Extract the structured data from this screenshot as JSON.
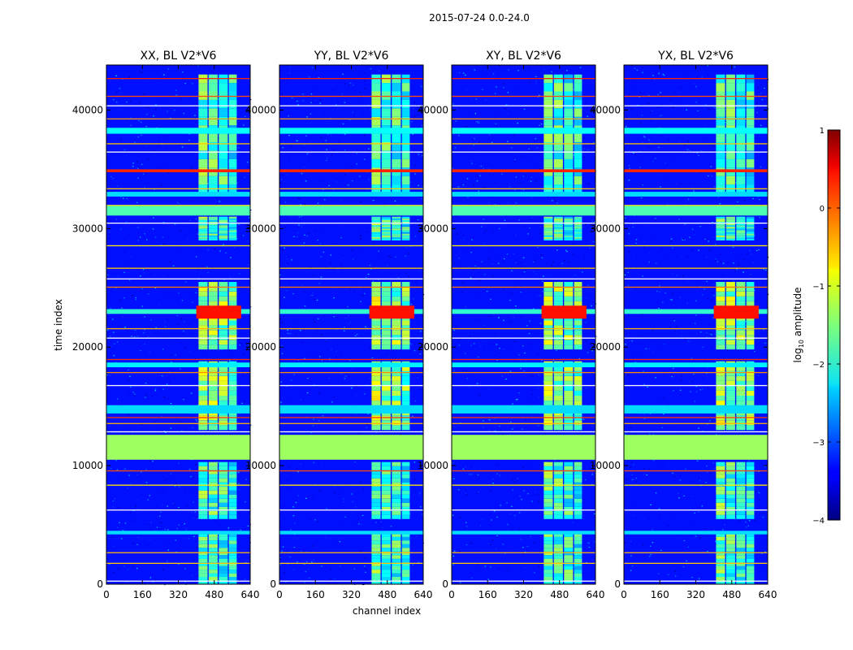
{
  "chart_data": {
    "type": "heatmap",
    "suptitle": "2015-07-24 0.0-24.0",
    "xlabel": "channel index",
    "ylabel": "time index",
    "xlim": [
      0,
      640
    ],
    "ylim": [
      0,
      43800
    ],
    "xticks": [
      0,
      160,
      320,
      480,
      640
    ],
    "yticks": [
      0,
      10000,
      20000,
      30000,
      40000
    ],
    "panels": [
      {
        "title": "XX, BL V2*V6",
        "variant": 0
      },
      {
        "title": "YY, BL V2*V6",
        "variant": 1
      },
      {
        "title": "XY, BL V2*V6",
        "variant": 2
      },
      {
        "title": "YX, BL V2*V6",
        "variant": 3
      }
    ],
    "colorbar": {
      "label_prefix": "log",
      "label_sub": "10",
      "label_suffix": " amplitude",
      "min": -4,
      "max": 1,
      "ticks": [
        1,
        0,
        -1,
        -2,
        -3,
        -4
      ],
      "tick_labels": [
        "1",
        "0",
        "−1",
        "−2",
        "−3",
        "−4"
      ],
      "colormap": "jet"
    },
    "flagged_rows": [
      {
        "y0": 10500,
        "y1": 12600,
        "value": -1.35
      },
      {
        "y0": 31100,
        "y1": 31900,
        "value": -1.75
      },
      {
        "y0": 34750,
        "y1": 35000,
        "value": 0.2
      },
      {
        "y0": 38000,
        "y1": 38500,
        "value": -2.1
      },
      {
        "y0": 32700,
        "y1": 33100,
        "value": -2.3
      },
      {
        "y0": 14400,
        "y1": 15100,
        "value": -2.3
      },
      {
        "y0": 18300,
        "y1": 18700,
        "value": -2.2
      },
      {
        "y0": 4200,
        "y1": 4500,
        "value": -2.3
      },
      {
        "y0": 22800,
        "y1": 23200,
        "value": -1.9
      }
    ],
    "rfi_channels": [
      {
        "x0": 410,
        "x1": 450,
        "value": -1.5
      },
      {
        "x0": 455,
        "x1": 495,
        "value": -1.6
      },
      {
        "x0": 500,
        "x1": 540,
        "value": -1.7
      },
      {
        "x0": 545,
        "x1": 580,
        "value": -1.8
      }
    ],
    "background_value": -3.3
  }
}
